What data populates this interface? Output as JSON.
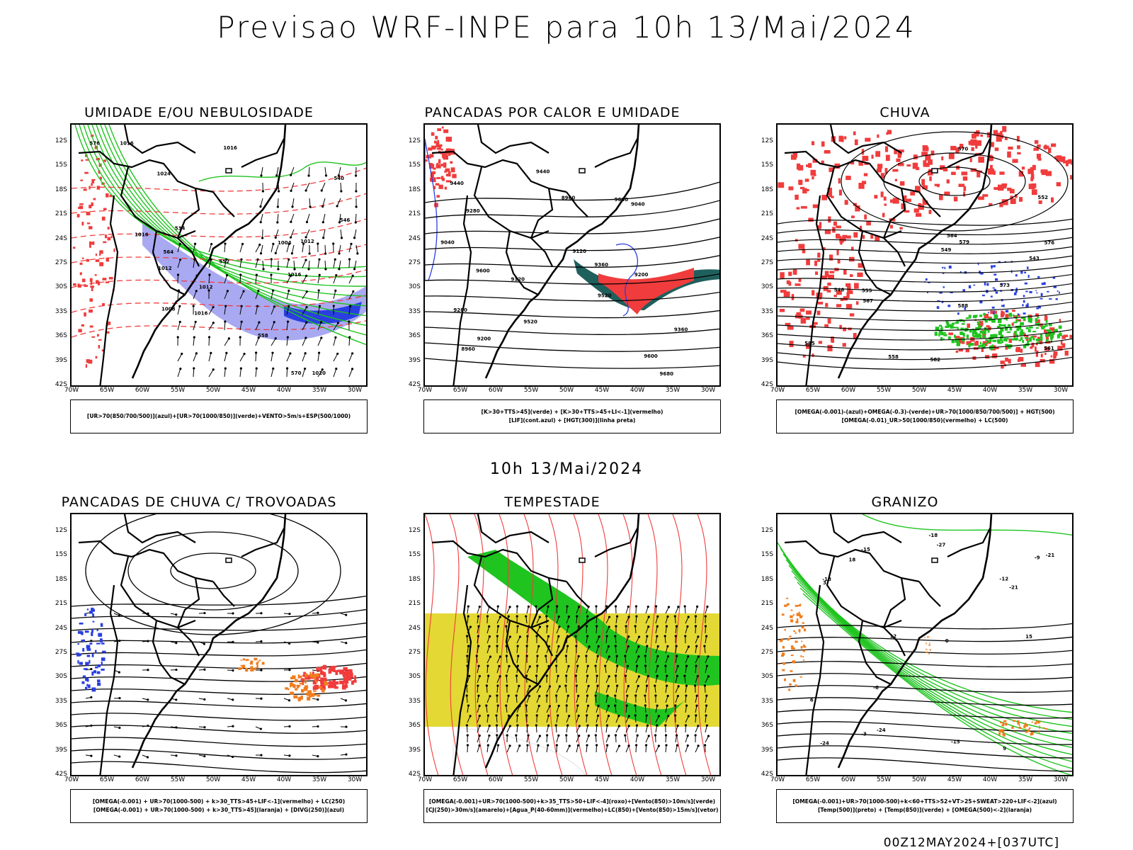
{
  "main_title": "Previsao WRF-INPE  para 10h 13/Mai/2024",
  "middle_title": "10h 13/Mai/2024",
  "footer": "00Z12MAY2024+[037UTC]",
  "axes": {
    "lat_labels": [
      "12S",
      "15S",
      "18S",
      "21S",
      "24S",
      "27S",
      "30S",
      "33S",
      "36S",
      "39S",
      "42S"
    ],
    "lon_labels": [
      "70W",
      "65W",
      "60W",
      "55W",
      "50W",
      "45W",
      "40W",
      "35W",
      "30W"
    ]
  },
  "colors": {
    "green": "#1fc41f",
    "red": "#f03c3c",
    "blue": "#2a3fe0",
    "lavender": "#9a9af0",
    "yellow": "#e3d834",
    "orange": "#f07c1c",
    "teal": "#1f5f5c"
  },
  "panels": [
    {
      "title": "UMIDADE E/OU NEBULOSIDADE",
      "legend": [
        "[UR>70(850/700/500)](azul)+[UR>70(1000/850)](verde)+VENTO>5m/s+ESP(500/1000)"
      ],
      "contour_labels": [
        "1012",
        "1016",
        "1016",
        "1016",
        "1020",
        "1024",
        "1016",
        "1012",
        "1008",
        "1004",
        "1012",
        "1016",
        "576",
        "570",
        "564",
        "558",
        "552",
        "546",
        "540",
        "534"
      ]
    },
    {
      "title": "PANCADAS POR CALOR E UMIDADE",
      "legend": [
        "[K>30+TTS>45](verde)  +  [K>30+TTS>45+LI<-1](vermelho)",
        "[LIF](cont.azul)  +  [HGT(300)](linha preta)"
      ],
      "contour_labels": [
        "9680",
        "9600",
        "9520",
        "9440",
        "9360",
        "9280",
        "9200",
        "9120",
        "9040",
        "8960",
        "9680",
        "9600",
        "9520",
        "9440",
        "9360",
        "9280",
        "9200",
        "9120",
        "9040",
        "8960"
      ]
    },
    {
      "title": "CHUVA",
      "legend": [
        "[OMEGA(-0.001)-(azul)+OMEGA(-0.3)-(verde)+UR>70(1000/850/700/500)]  +  HGT(500)",
        "[OMEGA(-0.01)_UR>50(1000/850)(vermelho)  +  LC(500)"
      ],
      "contour_labels": [
        "588",
        "585",
        "582",
        "579",
        "576",
        "573",
        "570",
        "567",
        "564",
        "561",
        "558",
        "555",
        "552",
        "549",
        "546",
        "543"
      ]
    },
    {
      "title": "PANCADAS DE CHUVA C/ TROVOADAS",
      "legend": [
        "[OMEGA(-0.001)  +  UR>70(1000-500)  +  k>30_TTS>45+LIF<-1](vermelho)  +  LC(250)",
        "[OMEGA(-0.001)  +  UR>70(1000-500)  +  k>30_TTS>45](laranja)  +  [DIVG(250)](azul)"
      ],
      "contour_labels": []
    },
    {
      "title": "TEMPESTADE",
      "legend": [
        "[OMEGA(-0.001)+UR>70(1000-500)+k>35_TTS>50+LIF<-4](roxo)+[Vento(850)>10m/s](verde)",
        "[CJ(250)>30m/s](amarelo)+[Agua_P(40-60mm)](vermelho)+LC(850)+[Vento(850)>15m/s](vetor)"
      ],
      "contour_labels": []
    },
    {
      "title": "GRANIZO",
      "legend": [
        "[OMEGA(-0.001)+UR>70(1000-500)+k<60+TTS>52+VT>25+SWEAT>220+LIF<-2](azul)",
        "[Temp(500)](preto)  +  [Temp(850)](verde)  +  [OMEGA(500)<-2](laranja)"
      ],
      "contour_labels": [
        "18",
        "15",
        "12",
        "9",
        "6",
        "3",
        "0",
        "-3",
        "-6",
        "-9",
        "-12",
        "-15",
        "-18",
        "-21",
        "-24",
        "-27",
        "-24",
        "-21",
        "-18",
        "-15"
      ]
    }
  ]
}
